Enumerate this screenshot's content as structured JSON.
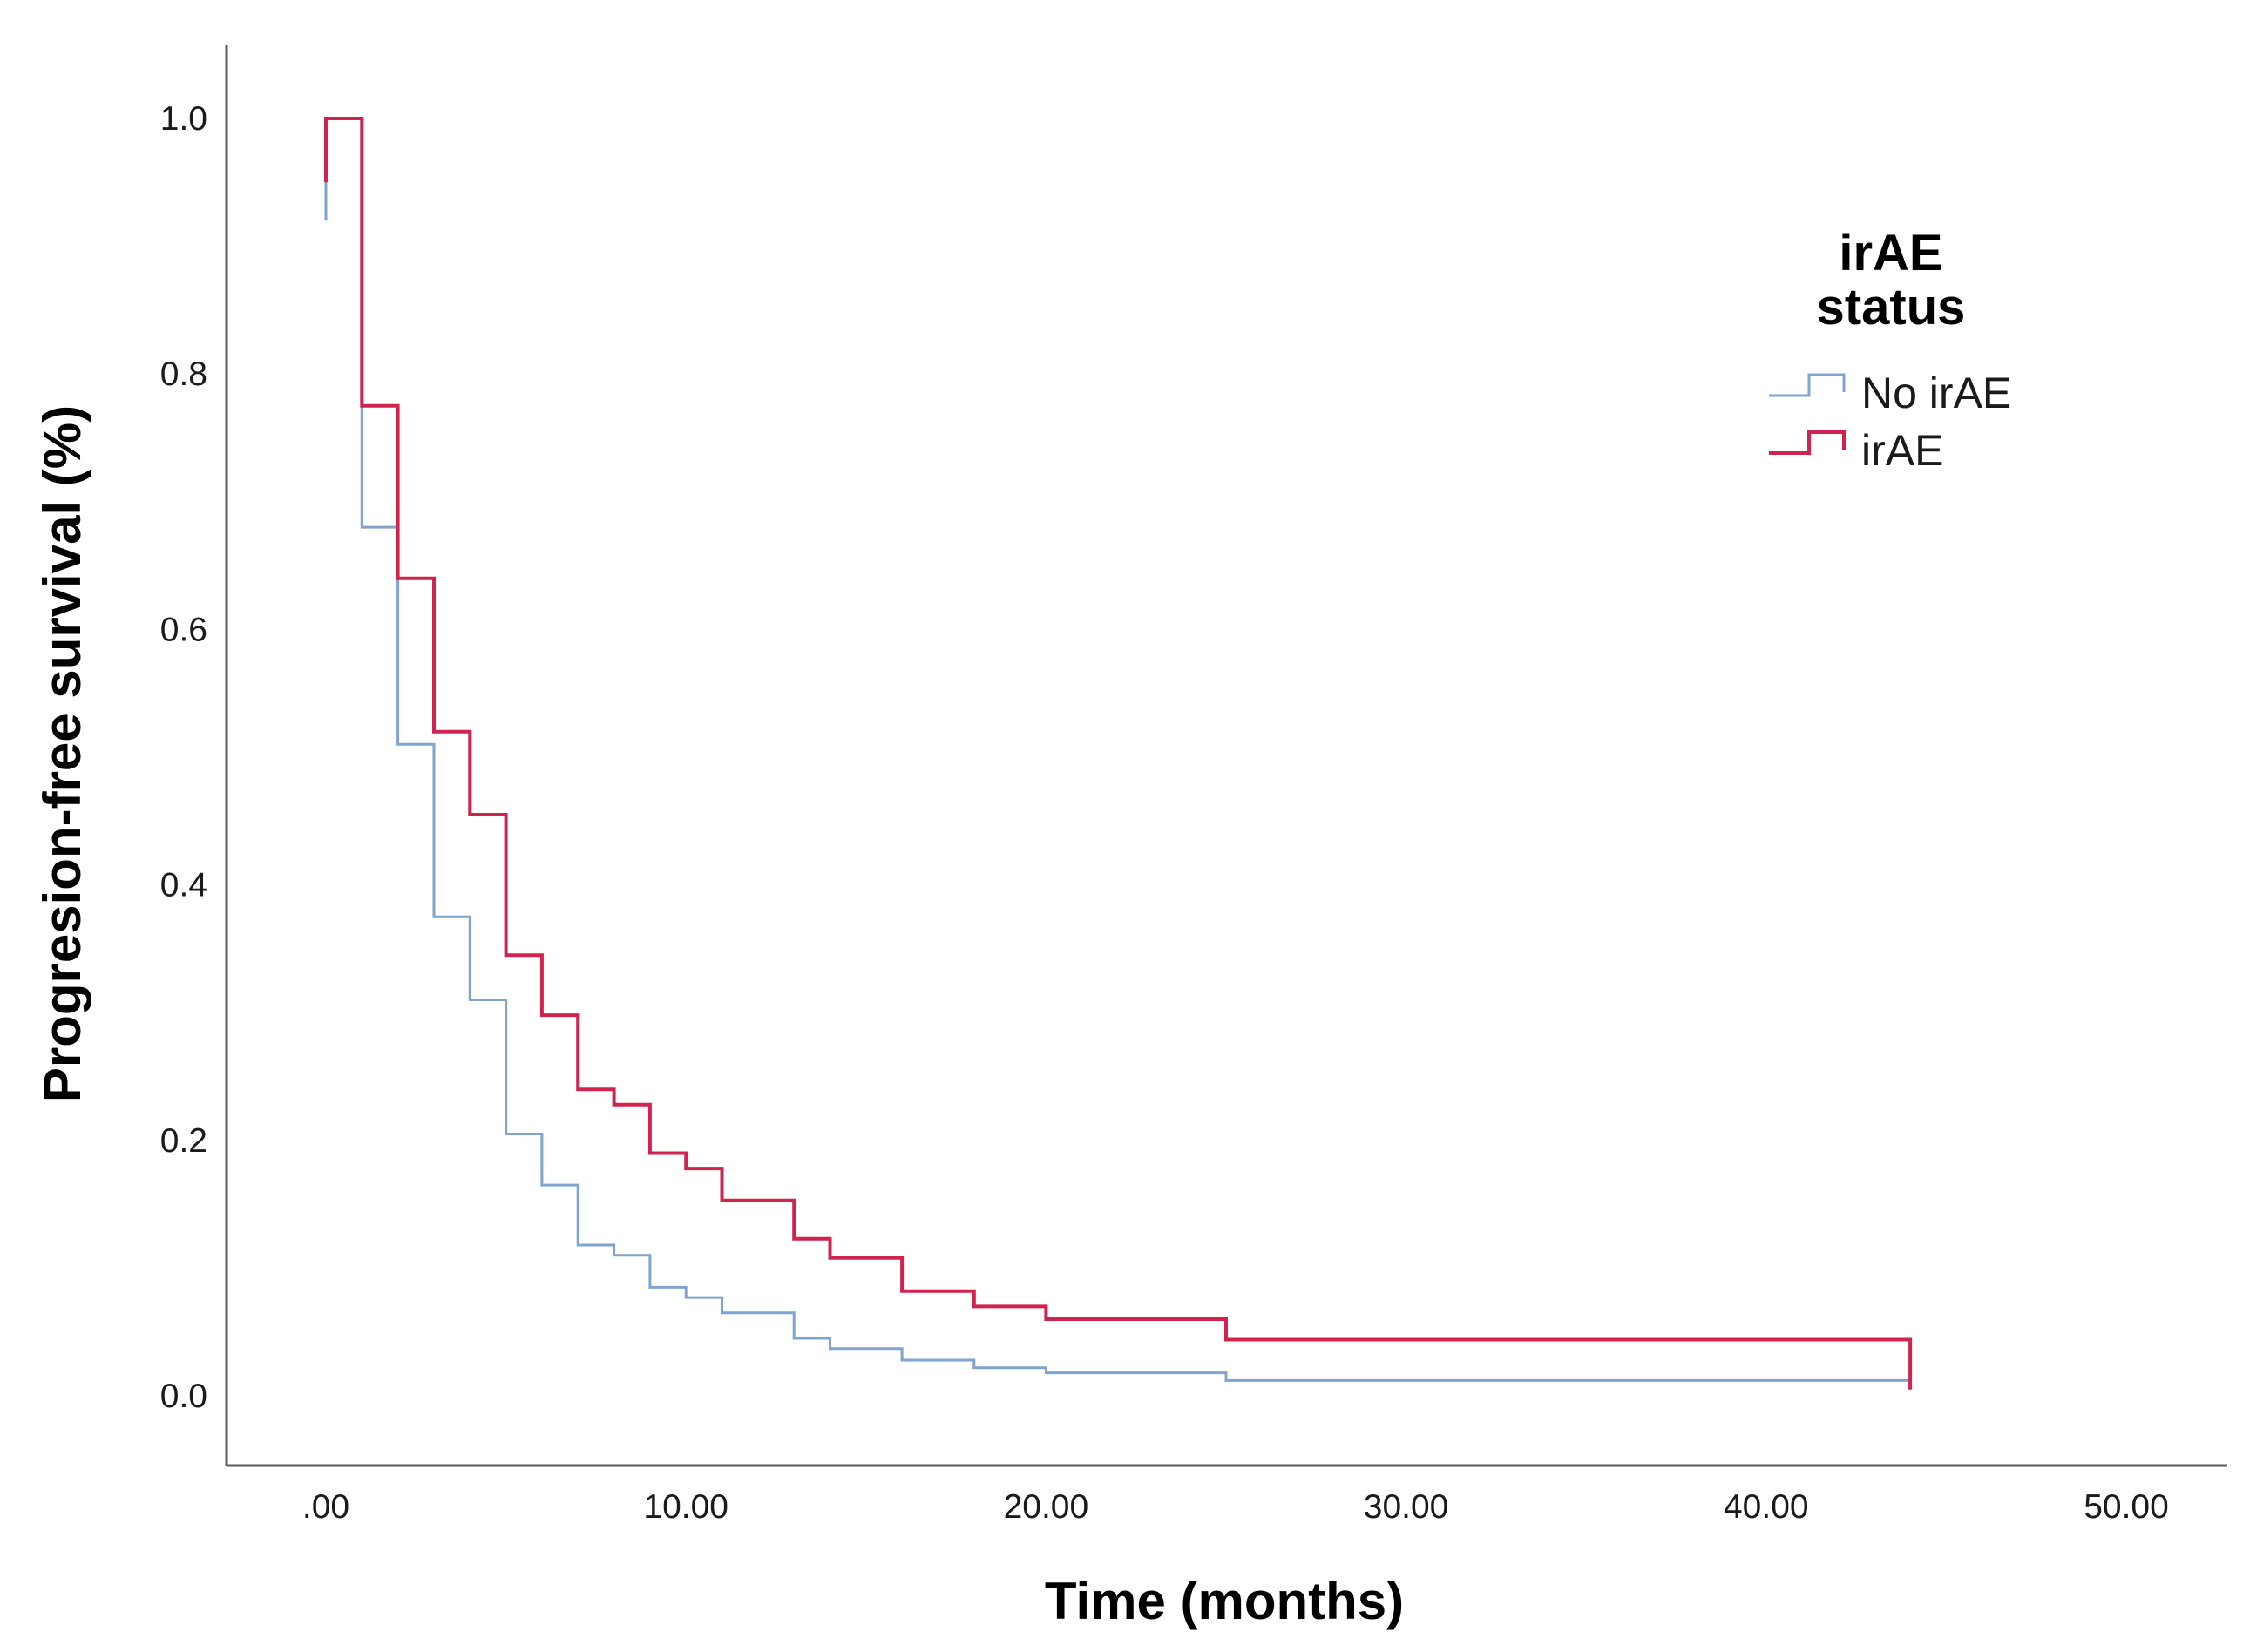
{
  "chart_data": {
    "type": "line",
    "subtype": "kaplan-meier-step",
    "title": "",
    "xlabel": "Time (months)",
    "ylabel": "Progresion-free survival (%)",
    "xlim": [
      0,
      50
    ],
    "ylim": [
      0,
      1.0
    ],
    "xticks": [
      0,
      10,
      20,
      30,
      40,
      50
    ],
    "xtick_labels": [
      ".00",
      "10.00",
      "20.00",
      "30.00",
      "40.00",
      "50.00"
    ],
    "yticks": [
      0,
      0.2,
      0.4,
      0.6,
      0.8,
      1.0
    ],
    "ytick_labels": [
      "0.0",
      "0.2",
      "0.4",
      "0.6",
      "0.8",
      "1.0"
    ],
    "grid": false,
    "legend": {
      "title": [
        "irAE",
        "status"
      ],
      "position": "top-right"
    },
    "series": [
      {
        "name": "No irAE",
        "color": "#7fa4cf",
        "step": true,
        "points": [
          [
            0,
            0.92
          ],
          [
            0,
            0.95
          ],
          [
            0,
            1.0
          ],
          [
            1,
            1.0
          ],
          [
            1,
            0.68
          ],
          [
            2,
            0.68
          ],
          [
            2,
            0.51
          ],
          [
            3,
            0.51
          ],
          [
            3,
            0.375
          ],
          [
            4,
            0.375
          ],
          [
            4,
            0.31
          ],
          [
            5,
            0.31
          ],
          [
            5,
            0.205
          ],
          [
            6,
            0.205
          ],
          [
            6,
            0.165
          ],
          [
            7,
            0.165
          ],
          [
            7,
            0.118
          ],
          [
            8,
            0.118
          ],
          [
            8,
            0.11
          ],
          [
            9,
            0.11
          ],
          [
            9,
            0.085
          ],
          [
            10,
            0.085
          ],
          [
            10,
            0.077
          ],
          [
            11,
            0.077
          ],
          [
            11,
            0.065
          ],
          [
            13,
            0.065
          ],
          [
            13,
            0.045
          ],
          [
            14,
            0.045
          ],
          [
            14,
            0.037
          ],
          [
            16,
            0.037
          ],
          [
            16,
            0.028
          ],
          [
            18,
            0.028
          ],
          [
            18,
            0.022
          ],
          [
            20,
            0.022
          ],
          [
            20,
            0.018
          ],
          [
            25,
            0.018
          ],
          [
            25,
            0.012
          ],
          [
            44,
            0.012
          ]
        ]
      },
      {
        "name": "irAE",
        "color": "#d0234e",
        "step": true,
        "points": [
          [
            0,
            0.95
          ],
          [
            0,
            1.0
          ],
          [
            1,
            1.0
          ],
          [
            1,
            0.775
          ],
          [
            2,
            0.775
          ],
          [
            2,
            0.64
          ],
          [
            3,
            0.64
          ],
          [
            3,
            0.52
          ],
          [
            4,
            0.52
          ],
          [
            4,
            0.455
          ],
          [
            5,
            0.455
          ],
          [
            5,
            0.345
          ],
          [
            6,
            0.345
          ],
          [
            6,
            0.298
          ],
          [
            7,
            0.298
          ],
          [
            7,
            0.24
          ],
          [
            8,
            0.24
          ],
          [
            8,
            0.228
          ],
          [
            9,
            0.228
          ],
          [
            9,
            0.19
          ],
          [
            10,
            0.19
          ],
          [
            10,
            0.178
          ],
          [
            11,
            0.178
          ],
          [
            11,
            0.153
          ],
          [
            13,
            0.153
          ],
          [
            13,
            0.123
          ],
          [
            14,
            0.123
          ],
          [
            14,
            0.108
          ],
          [
            16,
            0.108
          ],
          [
            16,
            0.082
          ],
          [
            18,
            0.082
          ],
          [
            18,
            0.07
          ],
          [
            20,
            0.07
          ],
          [
            20,
            0.06
          ],
          [
            25,
            0.06
          ],
          [
            25,
            0.044
          ],
          [
            44,
            0.044
          ],
          [
            44,
            0.005
          ]
        ]
      }
    ]
  }
}
